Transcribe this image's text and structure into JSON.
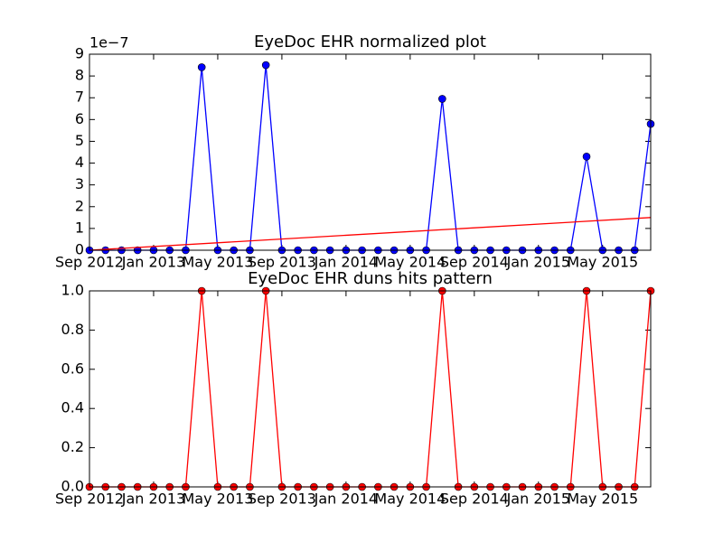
{
  "chart_data": [
    {
      "type": "line",
      "title": "EyeDoc EHR normalized plot",
      "offset_label": "1e−7",
      "x": [
        "2012-09",
        "2012-10",
        "2012-11",
        "2012-12",
        "2013-01",
        "2013-02",
        "2013-03",
        "2013-04",
        "2013-05",
        "2013-06",
        "2013-07",
        "2013-08",
        "2013-09",
        "2013-10",
        "2013-11",
        "2013-12",
        "2014-01",
        "2014-02",
        "2014-03",
        "2014-04",
        "2014-05",
        "2014-06",
        "2014-07",
        "2014-08",
        "2014-09",
        "2014-10",
        "2014-11",
        "2014-12",
        "2015-01",
        "2015-02",
        "2015-03",
        "2015-04",
        "2015-05",
        "2015-06",
        "2015-07",
        "2015-08"
      ],
      "series": [
        {
          "color": "#0000ff",
          "values": [
            0,
            0,
            0,
            0,
            0,
            0,
            0,
            8.4,
            0,
            0,
            0,
            8.5,
            0,
            0,
            0,
            0,
            0,
            0,
            0,
            0,
            0,
            0,
            6.95,
            0,
            0,
            0,
            0,
            0,
            0,
            0,
            0,
            4.3,
            0,
            0,
            0,
            5.8
          ]
        }
      ],
      "trend": {
        "color": "#ff0000",
        "x": [
          "2012-09",
          "2015-08"
        ],
        "values": [
          0,
          1.5
        ]
      },
      "xlim": [
        "2012-09",
        "2015-08"
      ],
      "xticks": [
        {
          "value": "2012-09",
          "label": "Sep 2012"
        },
        {
          "value": "2013-01",
          "label": "Jan 2013"
        },
        {
          "value": "2013-05",
          "label": "May 2013"
        },
        {
          "value": "2013-09",
          "label": "Sep 2013"
        },
        {
          "value": "2014-01",
          "label": "Jan 2014"
        },
        {
          "value": "2014-05",
          "label": "May 2014"
        },
        {
          "value": "2014-09",
          "label": "Sep 2014"
        },
        {
          "value": "2015-01",
          "label": "Jan 2015"
        },
        {
          "value": "2015-05",
          "label": "May 2015"
        }
      ],
      "ylim": [
        0,
        9
      ],
      "yticks": [
        0,
        1,
        2,
        3,
        4,
        5,
        6,
        7,
        8,
        9
      ]
    },
    {
      "type": "line",
      "title": "EyeDoc EHR duns hits pattern",
      "x": [
        "2012-09",
        "2012-10",
        "2012-11",
        "2012-12",
        "2013-01",
        "2013-02",
        "2013-03",
        "2013-04",
        "2013-05",
        "2013-06",
        "2013-07",
        "2013-08",
        "2013-09",
        "2013-10",
        "2013-11",
        "2013-12",
        "2014-01",
        "2014-02",
        "2014-03",
        "2014-04",
        "2014-05",
        "2014-06",
        "2014-07",
        "2014-08",
        "2014-09",
        "2014-10",
        "2014-11",
        "2014-12",
        "2015-01",
        "2015-02",
        "2015-03",
        "2015-04",
        "2015-05",
        "2015-06",
        "2015-07",
        "2015-08"
      ],
      "series": [
        {
          "color": "#ff0000",
          "values": [
            0,
            0,
            0,
            0,
            0,
            0,
            0,
            1,
            0,
            0,
            0,
            1,
            0,
            0,
            0,
            0,
            0,
            0,
            0,
            0,
            0,
            0,
            1,
            0,
            0,
            0,
            0,
            0,
            0,
            0,
            0,
            1,
            0,
            0,
            0,
            1
          ]
        }
      ],
      "xlim": [
        "2012-09",
        "2015-08"
      ],
      "xticks": [
        {
          "value": "2012-09",
          "label": "Sep 2012"
        },
        {
          "value": "2013-01",
          "label": "Jan 2013"
        },
        {
          "value": "2013-05",
          "label": "May 2013"
        },
        {
          "value": "2013-09",
          "label": "Sep 2013"
        },
        {
          "value": "2014-01",
          "label": "Jan 2014"
        },
        {
          "value": "2014-05",
          "label": "May 2014"
        },
        {
          "value": "2014-09",
          "label": "Sep 2014"
        },
        {
          "value": "2015-01",
          "label": "Jan 2015"
        },
        {
          "value": "2015-05",
          "label": "May 2015"
        }
      ],
      "ylim": [
        0,
        1
      ],
      "yticks": [
        {
          "value": 0,
          "label": "0.0"
        },
        {
          "value": 0.2,
          "label": "0.2"
        },
        {
          "value": 0.4,
          "label": "0.4"
        },
        {
          "value": 0.6,
          "label": "0.6"
        },
        {
          "value": 0.8,
          "label": "0.8"
        },
        {
          "value": 1,
          "label": "1.0"
        }
      ]
    }
  ]
}
